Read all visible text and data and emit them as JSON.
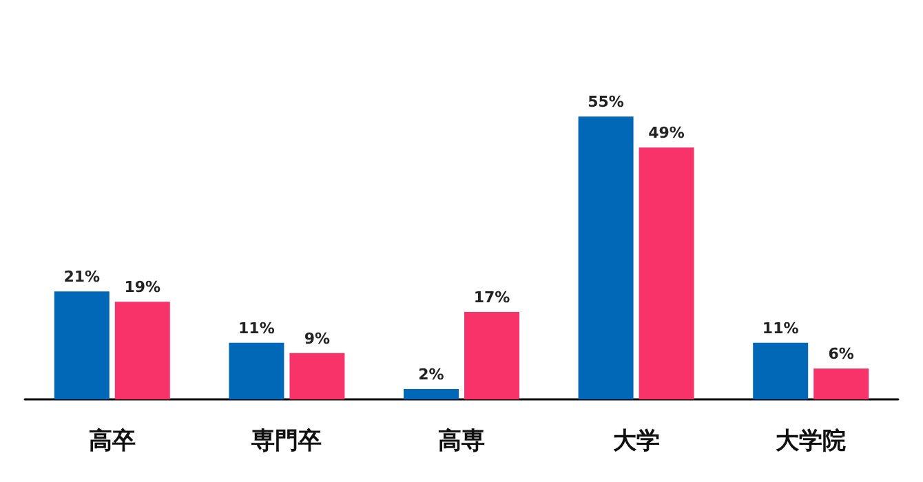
{
  "chart_data": {
    "type": "bar",
    "categories": [
      "高卒",
      "専門卒",
      "高専",
      "大学",
      "大学院"
    ],
    "series": [
      {
        "color": "#0068b7",
        "values": [
          21,
          11,
          2,
          55,
          11
        ],
        "value_labels": [
          "21%",
          "11%",
          "2%",
          "55%",
          "11%"
        ]
      },
      {
        "color": "#f7336a",
        "values": [
          19,
          9,
          17,
          49,
          6
        ],
        "value_labels": [
          "19%",
          "9%",
          "17%",
          "49%",
          "6%"
        ]
      }
    ]
  }
}
